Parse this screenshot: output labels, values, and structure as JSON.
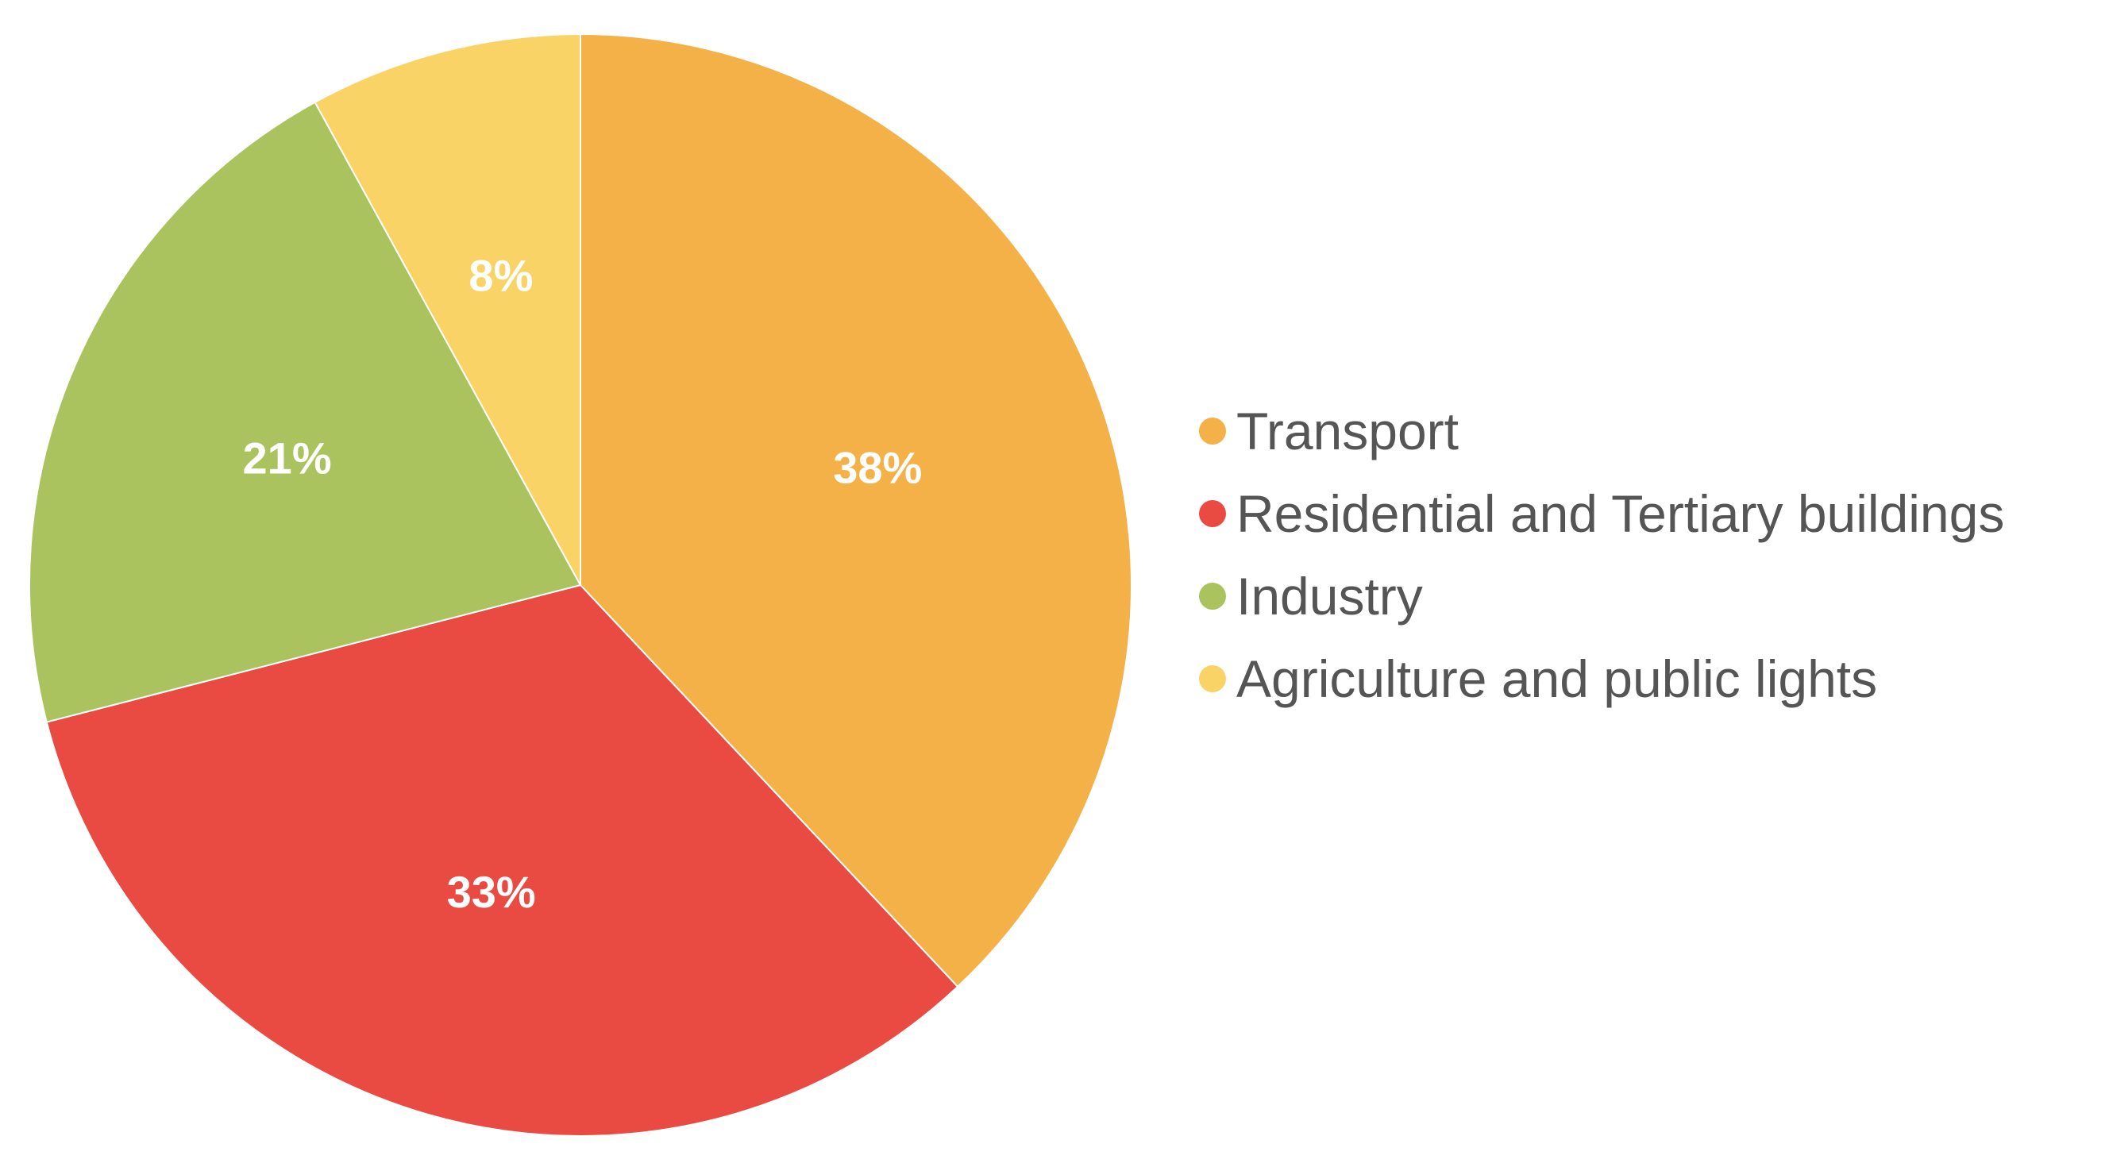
{
  "chart_data": {
    "type": "pie",
    "title": "",
    "start_angle_deg": 0,
    "direction": "clockwise",
    "legend_position": "right",
    "label_position": "inside",
    "slices": [
      {
        "name": "Transport",
        "value": 38,
        "label": "38%",
        "color": "#F4B147"
      },
      {
        "name": "Residential and Tertiary buildings",
        "value": 33,
        "label": "33%",
        "color": "#E94B43"
      },
      {
        "name": "Industry",
        "value": 21,
        "label": "21%",
        "color": "#AAC35E"
      },
      {
        "name": "Agriculture and public lights",
        "value": 8,
        "label": "8%",
        "color": "#F9D366"
      }
    ]
  }
}
